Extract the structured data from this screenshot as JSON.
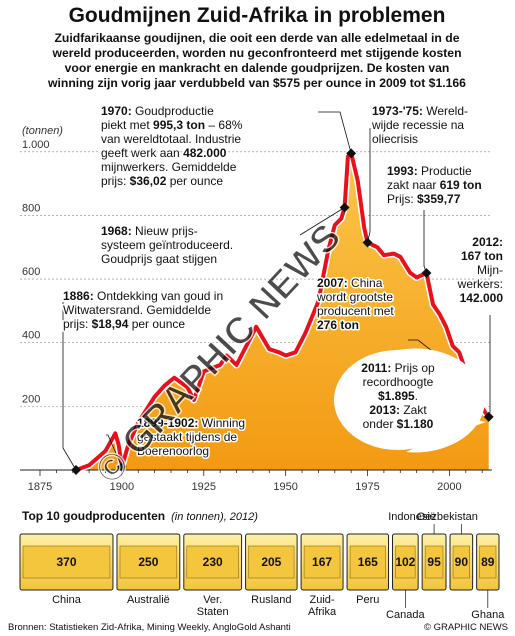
{
  "title": "Goudmijnen Zuid-Afrika in problemen",
  "intro": [
    "Zuidfarikaanse goudijnen, die ooit een derde van alle edelmetaal in de",
    "wereld produceerden, worden nu geconfronteerd met stijgende kosten",
    "voor energie en mankracht en dalende goudprijzen. De kosten van",
    "winning zijn vorig jaar verdubbeld van $575 per ounce in 2009 tot $1.166"
  ],
  "chart_data": [
    {
      "type": "line",
      "ylabel": "(tonnen)",
      "xlim": [
        1875,
        2013
      ],
      "ylim": [
        0,
        1100
      ],
      "y_ticks": [
        {
          "value": 200,
          "label": "200"
        },
        {
          "value": 400,
          "label": "400"
        },
        {
          "value": 600,
          "label": "600"
        },
        {
          "value": 800,
          "label": "800"
        },
        {
          "value": 1000,
          "label": "1.000"
        }
      ],
      "x_ticks": [
        {
          "value": 1875,
          "label": "1875"
        },
        {
          "value": 1900,
          "label": "1900"
        },
        {
          "value": 1925,
          "label": "1925"
        },
        {
          "value": 1950,
          "label": "1950"
        },
        {
          "value": 1975,
          "label": "1975"
        },
        {
          "value": 2000,
          "label": "2000"
        }
      ],
      "grid": true,
      "colors": {
        "line": "#e8101a",
        "fill": "#f7a21a",
        "fill_light": "#fde3a0"
      },
      "series": [
        {
          "x": [
            1886,
            1890,
            1895,
            1898,
            1899,
            1900,
            1902,
            1905,
            1910,
            1913,
            1916,
            1920,
            1922,
            1925,
            1930,
            1932,
            1935,
            1940,
            1941,
            1945,
            1948,
            1950,
            1953,
            1956,
            1960,
            1963,
            1965,
            1967,
            1968,
            1969,
            1970,
            1972,
            1974,
            1975,
            1976,
            1978,
            1980,
            1983,
            1985,
            1988,
            1990,
            1993,
            1995,
            1997,
            1999,
            2001,
            2003,
            2005,
            2007,
            2009,
            2011,
            2012
          ],
          "values": [
            0,
            15,
            60,
            115,
            80,
            10,
            80,
            150,
            230,
            265,
            290,
            260,
            220,
            310,
            330,
            360,
            330,
            430,
            450,
            380,
            370,
            360,
            370,
            430,
            530,
            690,
            770,
            790,
            825,
            985,
            995.3,
            910,
            760,
            715,
            710,
            700,
            675,
            680,
            670,
            620,
            605,
            619,
            520,
            490,
            450,
            390,
            370,
            310,
            276,
            215,
            180,
            167
          ]
        }
      ],
      "annotations": [
        {
          "id": "a1970",
          "lines": [
            [
              {
                "t": "1970:",
                "b": true
              },
              {
                "t": " Goudproductie"
              }
            ],
            [
              {
                "t": "piekt met "
              },
              {
                "t": "995,3 ton",
                "b": true
              },
              {
                "t": " – 68%"
              }
            ],
            [
              {
                "t": "van wereldtotaal. Industrie"
              }
            ],
            [
              {
                "t": "geeft werk aan "
              },
              {
                "t": "482.000",
                "b": true
              }
            ],
            [
              {
                "t": "mijnwerkers. Gemiddelde"
              }
            ],
            [
              {
                "t": "prijs: "
              },
              {
                "t": "$36,02",
                "b": true
              },
              {
                "t": " per ounce"
              }
            ]
          ]
        },
        {
          "id": "a1973",
          "lines": [
            [
              {
                "t": "1973-'75:",
                "b": true
              },
              {
                "t": " Wereld-"
              }
            ],
            [
              {
                "t": "wijde recessie na"
              }
            ],
            [
              {
                "t": "oliecrisis"
              }
            ]
          ]
        },
        {
          "id": "a1993",
          "lines": [
            [
              {
                "t": "1993:",
                "b": true
              },
              {
                "t": " Productie"
              }
            ],
            [
              {
                "t": "zakt naar "
              },
              {
                "t": "619 ton",
                "b": true
              }
            ],
            [
              {
                "t": "Prijs: "
              },
              {
                "t": "$359,77",
                "b": true
              }
            ]
          ]
        },
        {
          "id": "a1968",
          "lines": [
            [
              {
                "t": "1968:",
                "b": true
              },
              {
                "t": " Nieuw prijs-"
              }
            ],
            [
              {
                "t": "systeem geïntroduceerd."
              }
            ],
            [
              {
                "t": "Goudprijs gaat stijgen"
              }
            ]
          ]
        },
        {
          "id": "a2012",
          "lines": [
            [
              {
                "t": "2012:",
                "b": true
              }
            ],
            [
              {
                "t": "167 ton",
                "b": true
              }
            ],
            [
              {
                "t": "Mijn-"
              }
            ],
            [
              {
                "t": "werkers:"
              }
            ],
            [
              {
                "t": "142.000",
                "b": true
              }
            ]
          ]
        },
        {
          "id": "a2007",
          "lines": [
            [
              {
                "t": "2007:",
                "b": true
              },
              {
                "t": " China"
              }
            ],
            [
              {
                "t": "wordt grootste"
              }
            ],
            [
              {
                "t": "producent met"
              }
            ],
            [
              {
                "t": "276 ton",
                "b": true
              }
            ]
          ]
        },
        {
          "id": "a1886",
          "lines": [
            [
              {
                "t": "1886:",
                "b": true
              },
              {
                "t": " Ontdekking van goud in"
              }
            ],
            [
              {
                "t": "Witwatersrand. Gemiddelde"
              }
            ],
            [
              {
                "t": "prijs: "
              },
              {
                "t": "$18,94",
                "b": true
              },
              {
                "t": " per ounce"
              }
            ]
          ]
        },
        {
          "id": "a2011",
          "lines": [
            [
              {
                "t": "2011:",
                "b": true
              },
              {
                "t": " Prijs op"
              }
            ],
            [
              {
                "t": "recordhoogte"
              }
            ],
            [
              {
                "t": "$1.895",
                "b": true
              },
              {
                "t": "."
              }
            ],
            [
              {
                "t": "2013:",
                "b": true
              },
              {
                "t": " Zakt"
              }
            ],
            [
              {
                "t": "onder "
              },
              {
                "t": "$1.180",
                "b": true
              }
            ]
          ]
        },
        {
          "id": "a1899",
          "lines": [
            [
              {
                "t": "1899-1902:",
                "b": true
              },
              {
                "t": " Winning"
              }
            ],
            [
              {
                "t": "gestaakt tijdens de"
              }
            ],
            [
              {
                "t": "Boerenoorlog"
              }
            ]
          ]
        }
      ]
    },
    {
      "type": "bar",
      "title": "Top 10 goudproducenten",
      "unit_note": "(in tonnen), 2012)",
      "categories": [
        "China",
        "Australië",
        "Ver. Staten",
        "Rusland",
        "Zuid-Afrika",
        "Peru",
        "Canada",
        "Indonesië",
        "Oezbekistan",
        "Ghana"
      ],
      "values": [
        370,
        250,
        230,
        205,
        167,
        165,
        102,
        95,
        90,
        89
      ],
      "colors": {
        "bar": "#f4cf4c",
        "bar_light": "#fdf0a6",
        "frame": "#222222"
      }
    }
  ],
  "watermark": "© GRAPHIC NEWS",
  "footer": {
    "sources": "Bronnen: Statistieken Zid-Afrika, Mining Weekly, AngloGold Ashanti",
    "credit": "© GRAPHIC NEWS"
  }
}
